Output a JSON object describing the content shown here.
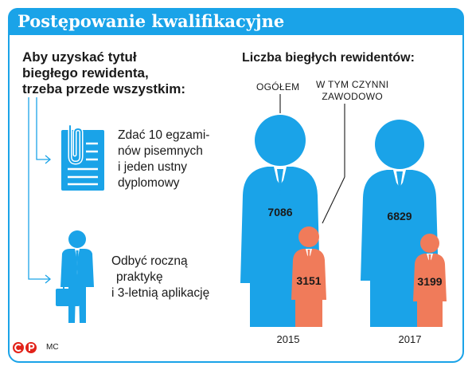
{
  "title": "Postępowanie kwalifikacyjne",
  "intro_lines": [
    "Aby uzyskać tytuł",
    "biegłego rewidenta,",
    "trzeba przede wszystkim:"
  ],
  "requirements": [
    {
      "icon": "document-clip-icon",
      "lines": [
        "Zdać 10 egzami-",
        "nów pisemnych",
        "i jeden ustny",
        "dyplomowy"
      ]
    },
    {
      "icon": "businessman-briefcase-icon",
      "lines": [
        "Odbyć roczną",
        "praktykę",
        "i 3-letnią aplikację"
      ]
    }
  ],
  "chart": {
    "title": "Liczba biegłych rewidentów:",
    "legend_total": "OGÓŁEM",
    "legend_active_lines": [
      "W TYM CZYNNI",
      "ZAWODOWO"
    ],
    "colors": {
      "total": "#1aa3e8",
      "active": "#f07b5a"
    }
  },
  "chart_data": {
    "type": "bar",
    "categories": [
      "2015",
      "2017"
    ],
    "series": [
      {
        "name": "OGÓŁEM",
        "values": [
          7086,
          6829
        ]
      },
      {
        "name": "W TYM CZYNNI ZAWODOWO",
        "values": [
          3151,
          3199
        ]
      }
    ]
  },
  "footer": {
    "initials": "MC"
  }
}
